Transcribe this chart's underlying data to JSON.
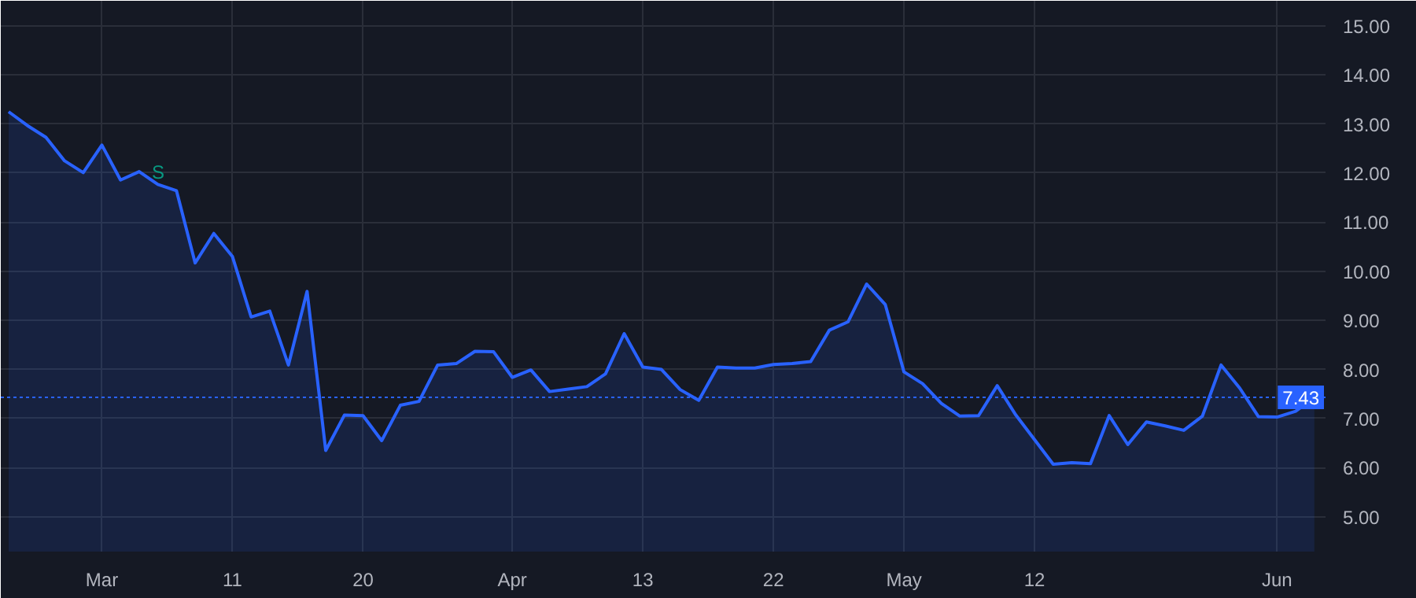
{
  "chart_data": {
    "type": "area",
    "categories": [
      null,
      null,
      null,
      null,
      null,
      "Mar",
      null,
      null,
      null,
      null,
      null,
      null,
      "11",
      null,
      null,
      null,
      null,
      null,
      null,
      "20",
      null,
      null,
      null,
      null,
      null,
      null,
      null,
      "Apr",
      null,
      null,
      null,
      null,
      null,
      null,
      "13",
      null,
      null,
      null,
      null,
      null,
      null,
      "22",
      null,
      null,
      null,
      null,
      null,
      null,
      "May",
      null,
      null,
      null,
      null,
      null,
      null,
      "12",
      null,
      null,
      null,
      null,
      null,
      null,
      null,
      null,
      null,
      null,
      null,
      null,
      "Jun",
      null,
      null
    ],
    "series": [
      {
        "color": "#2962ff",
        "values": [
          13.25,
          12.97,
          12.73,
          12.25,
          12.01,
          12.57,
          11.86,
          12.03,
          11.77,
          11.64,
          10.17,
          10.77,
          10.3,
          9.07,
          9.19,
          8.09,
          9.59,
          6.35,
          7.07,
          7.06,
          6.55,
          7.27,
          7.35,
          8.09,
          8.12,
          8.37,
          8.36,
          7.84,
          7.99,
          7.55,
          7.6,
          7.65,
          7.91,
          8.73,
          8.05,
          8.0,
          7.59,
          7.37,
          8.05,
          8.03,
          8.03,
          8.1,
          8.12,
          8.16,
          8.8,
          8.97,
          9.74,
          9.32,
          7.95,
          7.71,
          7.31,
          7.05,
          7.06,
          7.67,
          7.07,
          6.57,
          6.07,
          6.1,
          6.08,
          7.06,
          6.47,
          6.93,
          6.85,
          6.76,
          7.05,
          8.09,
          7.62,
          7.04,
          7.03,
          7.15,
          7.43
        ]
      }
    ],
    "ylim": [
      4.29,
      15.51
    ],
    "yticks": [
      {
        "value": 5,
        "label": "5.00"
      },
      {
        "value": 6,
        "label": "6.00"
      },
      {
        "value": 7,
        "label": "7.00"
      },
      {
        "value": 8,
        "label": "8.00"
      },
      {
        "value": 9,
        "label": "9.00"
      },
      {
        "value": 10,
        "label": "10.00"
      },
      {
        "value": 11,
        "label": "11.00"
      },
      {
        "value": 12,
        "label": "12.00"
      },
      {
        "value": 13,
        "label": "13.00"
      },
      {
        "value": 14,
        "label": "14.00"
      },
      {
        "value": 15,
        "label": "15.00"
      }
    ],
    "ref_lines": [
      {
        "axis": "y",
        "value": 7.43,
        "label": "7.43",
        "color": "#2962ff",
        "line_style": "dotted"
      }
    ],
    "annotations": [
      "S"
    ],
    "grid": true,
    "marker": "none",
    "line_style": "solid"
  }
}
